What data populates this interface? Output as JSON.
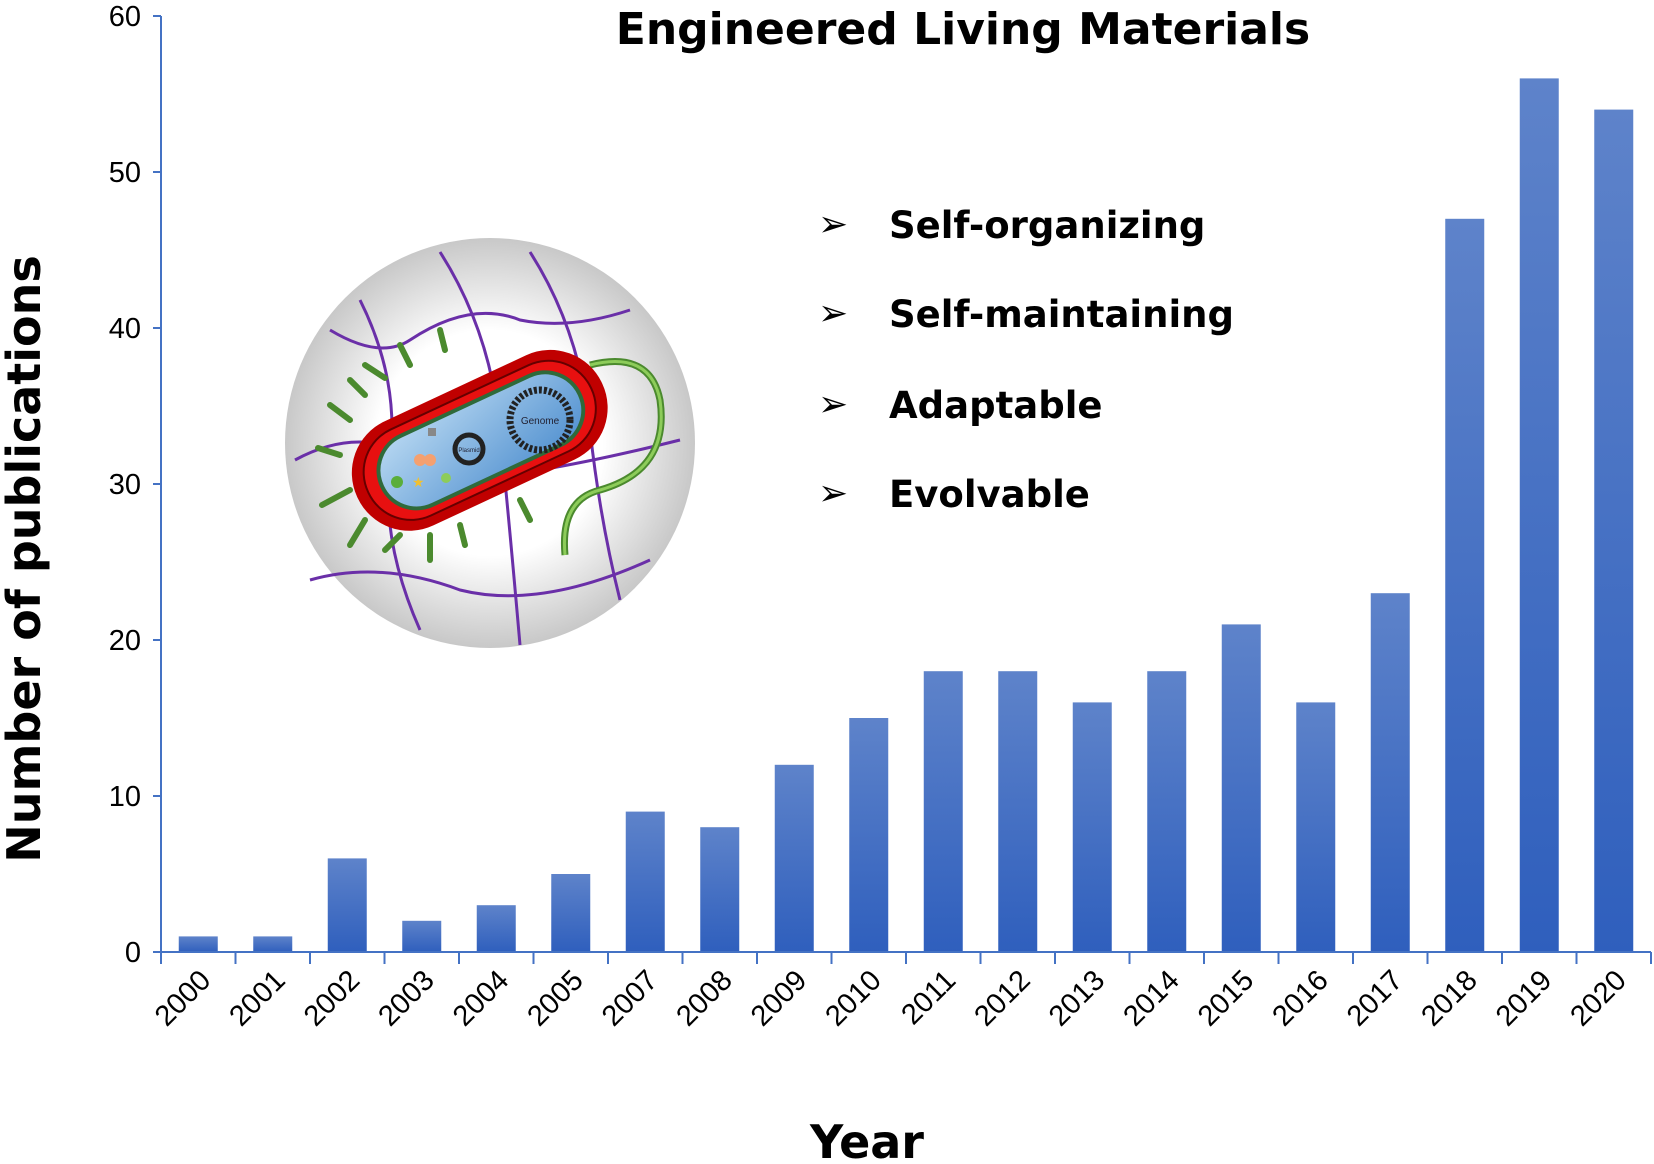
{
  "chart_data": {
    "type": "bar",
    "title": "Engineered Living Materials",
    "xlabel": "Year",
    "ylabel": "Number of publications",
    "categories": [
      "2000",
      "2001",
      "2002",
      "2003",
      "2004",
      "2005",
      "2007",
      "2008",
      "2009",
      "2010",
      "2011",
      "2012",
      "2013",
      "2014",
      "2015",
      "2016",
      "2017",
      "2018",
      "2019",
      "2020"
    ],
    "values": [
      1,
      1,
      6,
      2,
      3,
      5,
      9,
      8,
      12,
      15,
      18,
      18,
      16,
      18,
      21,
      16,
      23,
      47,
      56,
      54
    ],
    "ylim": [
      0,
      60
    ],
    "yticks": [
      0,
      10,
      20,
      30,
      40,
      50,
      60
    ],
    "grid": false,
    "bar_color": "#3a67c4",
    "annotations": [
      "Self-organizing",
      "Self-maintaining",
      "Adaptable",
      "Evolvable"
    ],
    "illustration_labels": [
      "Genome",
      "Plasmid"
    ]
  }
}
